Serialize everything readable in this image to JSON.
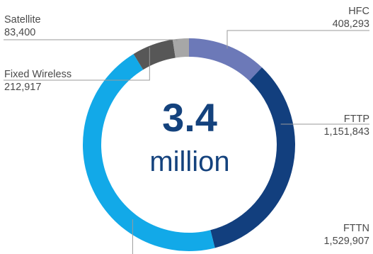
{
  "chart_data": {
    "type": "pie",
    "style": "donut",
    "center": {
      "value": "3.4",
      "unit": "million"
    },
    "slices": [
      {
        "label": "HFC",
        "value": 408293,
        "value_text": "408,293",
        "color": "#6c79b8"
      },
      {
        "label": "FTTP",
        "value": 1151843,
        "value_text": "1,151,843",
        "color": "#123f7e"
      },
      {
        "label": "FTTN",
        "value": 1529907,
        "value_text": "1,529,907",
        "color": "#12a9e8"
      },
      {
        "label": "Fixed Wireless",
        "value": 212917,
        "value_text": "212,917",
        "color": "#575757"
      },
      {
        "label": "Satellite",
        "value": 83400,
        "value_text": "83,400",
        "color": "#a7a7a7"
      }
    ]
  }
}
